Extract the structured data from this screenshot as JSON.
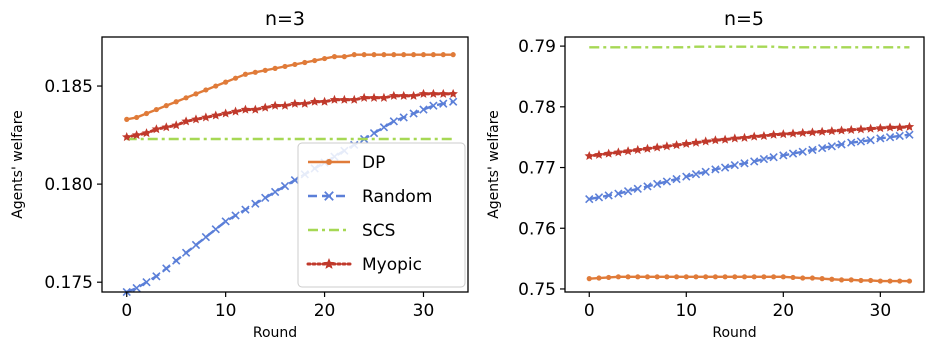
{
  "chart_data": [
    {
      "type": "line",
      "title": "n=3",
      "xlabel": "Round",
      "ylabel": "Agents' welfare",
      "xlim": [
        -2.5,
        34.5
      ],
      "ylim": [
        0.1745,
        0.1875
      ],
      "xticks": [
        0,
        10,
        20,
        30
      ],
      "yticks": [
        0.175,
        0.18,
        0.185
      ],
      "ytick_labels": [
        "0.175",
        "0.180",
        "0.185"
      ],
      "legend": "lower-right",
      "series": [
        {
          "name": "DP",
          "color": "#e07b39",
          "dash": "solid",
          "marker": "dot",
          "values": [
            0.1833,
            0.1834,
            0.1836,
            0.1838,
            0.184,
            0.1842,
            0.1844,
            0.1846,
            0.1848,
            0.185,
            0.1852,
            0.1854,
            0.1856,
            0.1857,
            0.1858,
            0.1859,
            0.186,
            0.1861,
            0.1862,
            0.1863,
            0.1864,
            0.1865,
            0.1865,
            0.1866,
            0.1866,
            0.1866,
            0.1866,
            0.1866,
            0.1866,
            0.1866,
            0.1866,
            0.1866,
            0.1866,
            0.1866
          ]
        },
        {
          "name": "Random",
          "color": "#5b7fd8",
          "dash": "dashed",
          "marker": "x",
          "values": [
            0.1745,
            0.1747,
            0.175,
            0.1753,
            0.1757,
            0.1761,
            0.1765,
            0.1769,
            0.1773,
            0.1777,
            0.1781,
            0.1784,
            0.1787,
            0.179,
            0.1793,
            0.1796,
            0.1799,
            0.1802,
            0.1805,
            0.1808,
            0.1811,
            0.1814,
            0.1817,
            0.182,
            0.1823,
            0.1826,
            0.1829,
            0.1832,
            0.1834,
            0.1836,
            0.1838,
            0.184,
            0.1841,
            0.1842
          ]
        },
        {
          "name": "SCS",
          "color": "#a6d854",
          "dash": "dashdot",
          "marker": "none",
          "values": [
            0.1823,
            0.1823,
            0.1823,
            0.1823,
            0.1823,
            0.1823,
            0.1823,
            0.1823,
            0.1823,
            0.1823,
            0.1823,
            0.1823,
            0.1823,
            0.1823,
            0.1823,
            0.1823,
            0.1823,
            0.1823,
            0.1823,
            0.1823,
            0.1823,
            0.1823,
            0.1823,
            0.1823,
            0.1823,
            0.1823,
            0.1823,
            0.1823,
            0.1823,
            0.1823,
            0.1823,
            0.1823,
            0.1823,
            0.1823
          ]
        },
        {
          "name": "Myopic",
          "color": "#c0392b",
          "dash": "dotted",
          "marker": "star",
          "values": [
            0.1824,
            0.1825,
            0.1826,
            0.1828,
            0.1829,
            0.183,
            0.1832,
            0.1833,
            0.1834,
            0.1835,
            0.1836,
            0.1837,
            0.1838,
            0.1838,
            0.1839,
            0.184,
            0.184,
            0.1841,
            0.1841,
            0.1842,
            0.1842,
            0.1843,
            0.1843,
            0.1843,
            0.1844,
            0.1844,
            0.1844,
            0.1845,
            0.1845,
            0.1845,
            0.1846,
            0.1846,
            0.1846,
            0.1846
          ]
        }
      ]
    },
    {
      "type": "line",
      "title": "n=5",
      "xlabel": "Round",
      "ylabel": "Agents' welfare",
      "xlim": [
        -2.5,
        34.5
      ],
      "ylim": [
        0.7495,
        0.7915
      ],
      "xticks": [
        0,
        10,
        20,
        30
      ],
      "yticks": [
        0.75,
        0.76,
        0.77,
        0.78,
        0.79
      ],
      "ytick_labels": [
        "0.75",
        "0.76",
        "0.77",
        "0.78",
        "0.79"
      ],
      "legend": "none",
      "series": [
        {
          "name": "DP",
          "color": "#e07b39",
          "dash": "solid",
          "marker": "dot",
          "values": [
            0.7517,
            0.7518,
            0.7519,
            0.752,
            0.752,
            0.752,
            0.752,
            0.752,
            0.752,
            0.752,
            0.752,
            0.752,
            0.752,
            0.752,
            0.752,
            0.752,
            0.752,
            0.752,
            0.752,
            0.752,
            0.752,
            0.7519,
            0.7518,
            0.7518,
            0.7517,
            0.7516,
            0.7515,
            0.7515,
            0.7514,
            0.7514,
            0.7513,
            0.7513,
            0.7513,
            0.7513
          ]
        },
        {
          "name": "Random",
          "color": "#5b7fd8",
          "dash": "dashed",
          "marker": "x",
          "values": [
            0.7648,
            0.7651,
            0.7654,
            0.7657,
            0.7661,
            0.7665,
            0.7669,
            0.7673,
            0.7677,
            0.7681,
            0.7685,
            0.7689,
            0.7693,
            0.7697,
            0.77,
            0.7704,
            0.7707,
            0.771,
            0.7714,
            0.7717,
            0.772,
            0.7723,
            0.7726,
            0.7729,
            0.7732,
            0.7735,
            0.7738,
            0.7741,
            0.7743,
            0.7745,
            0.7748,
            0.775,
            0.7752,
            0.7754
          ]
        },
        {
          "name": "SCS",
          "color": "#a6d854",
          "dash": "dashdot",
          "marker": "none",
          "values": [
            0.7898,
            0.7898,
            0.7898,
            0.7898,
            0.7898,
            0.7898,
            0.7898,
            0.7898,
            0.7898,
            0.7898,
            0.7898,
            0.7899,
            0.7899,
            0.7899,
            0.7899,
            0.7899,
            0.7899,
            0.7899,
            0.7899,
            0.7899,
            0.7898,
            0.7898,
            0.7898,
            0.7898,
            0.7898,
            0.7898,
            0.7898,
            0.7898,
            0.7898,
            0.7898,
            0.7898,
            0.7898,
            0.7898,
            0.7898
          ]
        },
        {
          "name": "Myopic",
          "color": "#c0392b",
          "dash": "dotted",
          "marker": "star",
          "values": [
            0.7719,
            0.7721,
            0.7723,
            0.7725,
            0.7727,
            0.7729,
            0.7731,
            0.7733,
            0.7735,
            0.7737,
            0.7739,
            0.7741,
            0.7743,
            0.7745,
            0.7746,
            0.7748,
            0.7749,
            0.7751,
            0.7752,
            0.7754,
            0.7755,
            0.7756,
            0.7757,
            0.7758,
            0.7759,
            0.776,
            0.7761,
            0.7762,
            0.7763,
            0.7764,
            0.7765,
            0.7766,
            0.7766,
            0.7767
          ]
        }
      ]
    }
  ]
}
